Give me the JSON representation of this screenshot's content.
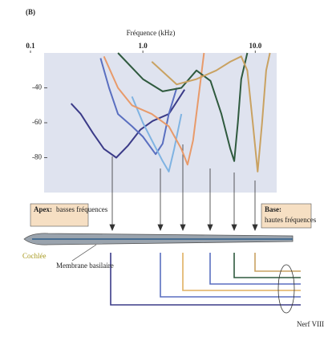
{
  "panel_label": "(B)",
  "chart_data": {
    "type": "line",
    "xscale": "log",
    "xlabel": "Fréquence (kHz)",
    "xlim": [
      0.1,
      15.5
    ],
    "xticks": [
      {
        "value": 0.1,
        "label": "0.1"
      },
      {
        "value": 1,
        "label": "1.0"
      },
      {
        "value": 10,
        "label": "10.0"
      }
    ],
    "ylim": [
      -100,
      -20
    ],
    "yticks": [
      -40,
      -60,
      -80
    ],
    "series": [
      {
        "color": "#3b3b88",
        "x": [
          0.23,
          0.28,
          0.36,
          0.45,
          0.58,
          0.74,
          0.95,
          1.22,
          1.7,
          2.35
        ],
        "values": [
          -49,
          -55,
          -66,
          -75,
          -80,
          -73,
          -64,
          -59,
          -55,
          -41
        ]
      },
      {
        "color": "#5a6fc0",
        "x": [
          0.42,
          0.5,
          0.6,
          0.8,
          1.0,
          1.3,
          1.5,
          1.7,
          2.0
        ],
        "values": [
          -23,
          -40,
          -55,
          -62,
          -68,
          -78,
          -72,
          -55,
          -40
        ]
      },
      {
        "color": "#7fb3e2",
        "x": [
          0.8,
          1.0,
          1.2,
          1.5,
          1.7,
          1.9,
          2.2
        ],
        "values": [
          -45,
          -60,
          -70,
          -82,
          -88,
          -75,
          -55
        ]
      },
      {
        "color": "#e89a6a",
        "x": [
          0.45,
          0.6,
          0.8,
          1.2,
          1.7,
          2.2,
          2.5,
          2.8,
          3.2,
          3.5
        ],
        "values": [
          -22,
          -40,
          -50,
          -55,
          -62,
          -75,
          -84,
          -70,
          -40,
          -20
        ]
      },
      {
        "color": "#2f5a3e",
        "x": [
          0.6,
          1.0,
          1.5,
          2.2,
          3.0,
          4.0,
          5.0,
          6.0,
          6.5,
          7.0,
          7.5,
          8.5
        ],
        "values": [
          -20,
          -35,
          -42,
          -40,
          -30,
          -36,
          -55,
          -75,
          -82,
          -60,
          -35,
          -20
        ]
      },
      {
        "color": "#c9a262",
        "x": [
          1.2,
          2,
          3,
          4.5,
          6,
          7.5,
          8.5,
          9.5,
          10.5,
          11.5,
          12.5,
          13.5
        ],
        "values": [
          -25,
          -38,
          -35,
          -30,
          -25,
          -22,
          -30,
          -60,
          -88,
          -60,
          -30,
          -20
        ]
      }
    ]
  },
  "diagram": {
    "apex_title": "Apex:",
    "apex_text": "basses fréquences",
    "base_title": "Base:",
    "base_text": "hautes fréquences",
    "cochlea": "Cochlée",
    "membrane": "Membrane basilaire",
    "nerve": "Nerf VIII"
  }
}
